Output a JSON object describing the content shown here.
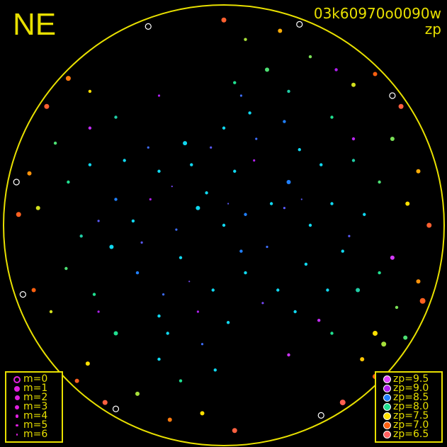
{
  "chart_data": {
    "type": "scatter",
    "title": "03k60970o0090w",
    "subtitle": "zp",
    "direction_label": "NE",
    "color_by": "zp",
    "size_by": "m",
    "field": "all-sky circle",
    "grid": false,
    "legend_size": {
      "placement": "bottom-left",
      "entries": [
        {
          "label": "m=0",
          "m": 0
        },
        {
          "label": "m=1",
          "m": 1
        },
        {
          "label": "m=2",
          "m": 2
        },
        {
          "label": "m=3",
          "m": 3
        },
        {
          "label": "m=4",
          "m": 4
        },
        {
          "label": "m=5",
          "m": 5
        },
        {
          "label": "m=6",
          "m": 6
        }
      ]
    },
    "legend_color": {
      "placement": "bottom-right",
      "entries": [
        {
          "label": "zp=9.5",
          "zp": 9.5,
          "color": "#e040ff"
        },
        {
          "label": "zp=9.0",
          "zp": 9.0,
          "color": "#b020f0"
        },
        {
          "label": "zp=8.5",
          "zp": 8.5,
          "color": "#2080ff"
        },
        {
          "label": "zp=8.0",
          "zp": 8.0,
          "color": "#20e090"
        },
        {
          "label": "zp=7.5",
          "zp": 7.5,
          "color": "#ffe000"
        },
        {
          "label": "zp=7.0",
          "zp": 7.0,
          "color": "#ff6010"
        },
        {
          "label": "zp=6.5",
          "zp": 6.5,
          "color": "#ff6060"
        }
      ]
    },
    "colors": {
      "frame": "#e8e000",
      "background": "#000000"
    },
    "points_format": [
      "x",
      "y",
      "zp",
      "m"
    ],
    "points": [
      [
        0.0,
        0.0,
        8.3,
        4
      ],
      [
        0.1,
        0.05,
        8.5,
        4
      ],
      [
        -0.12,
        0.08,
        8.3,
        3
      ],
      [
        0.2,
        -0.1,
        8.6,
        5
      ],
      [
        -0.2,
        -0.15,
        8.3,
        4
      ],
      [
        0.05,
        0.25,
        8.4,
        4
      ],
      [
        -0.05,
        -0.3,
        8.3,
        4
      ],
      [
        0.3,
        0.2,
        8.5,
        3
      ],
      [
        -0.3,
        0.25,
        8.3,
        4
      ],
      [
        0.25,
        -0.3,
        8.4,
        4
      ],
      [
        -0.28,
        -0.32,
        8.6,
        5
      ],
      [
        0.4,
        0.0,
        8.3,
        4
      ],
      [
        -0.42,
        0.02,
        8.4,
        4
      ],
      [
        0.0,
        0.45,
        8.3,
        4
      ],
      [
        0.02,
        -0.45,
        8.3,
        4
      ],
      [
        0.15,
        0.4,
        8.6,
        5
      ],
      [
        -0.18,
        0.38,
        8.3,
        3
      ],
      [
        0.38,
        -0.18,
        8.3,
        4
      ],
      [
        -0.4,
        -0.22,
        8.5,
        4
      ],
      [
        0.35,
        0.35,
        8.3,
        4
      ],
      [
        -0.35,
        0.36,
        8.6,
        5
      ],
      [
        0.33,
        -0.4,
        8.4,
        4
      ],
      [
        -0.3,
        -0.42,
        8.3,
        4
      ],
      [
        0.5,
        0.1,
        8.3,
        4
      ],
      [
        -0.5,
        0.12,
        8.5,
        4
      ],
      [
        0.12,
        0.52,
        8.3,
        4
      ],
      [
        -0.1,
        -0.55,
        8.6,
        5
      ],
      [
        0.55,
        -0.12,
        8.2,
        4
      ],
      [
        -0.52,
        -0.1,
        8.3,
        3
      ],
      [
        0.08,
        -0.12,
        8.5,
        4
      ],
      [
        -0.08,
        0.15,
        8.3,
        4
      ],
      [
        0.22,
        0.1,
        8.3,
        4
      ],
      [
        -0.22,
        -0.02,
        8.6,
        5
      ],
      [
        0.1,
        -0.22,
        8.3,
        4
      ],
      [
        -0.15,
        0.28,
        8.4,
        4
      ],
      [
        0.45,
        0.28,
        8.3,
        4
      ],
      [
        -0.46,
        0.3,
        8.3,
        4
      ],
      [
        0.28,
        0.48,
        8.5,
        4
      ],
      [
        -0.26,
        -0.5,
        8.3,
        4
      ],
      [
        0.48,
        -0.3,
        8.2,
        4
      ],
      [
        0.6,
        0.3,
        8.1,
        4
      ],
      [
        -0.62,
        0.28,
        8.2,
        4
      ],
      [
        0.3,
        0.62,
        8.1,
        4
      ],
      [
        -0.3,
        -0.62,
        8.2,
        4
      ],
      [
        0.62,
        -0.3,
        8.1,
        3
      ],
      [
        -0.6,
        -0.32,
        8.0,
        4
      ],
      [
        0.65,
        0.05,
        8.2,
        4
      ],
      [
        -0.66,
        -0.05,
        8.1,
        4
      ],
      [
        0.05,
        0.66,
        8.0,
        4
      ],
      [
        -0.04,
        -0.67,
        8.2,
        4
      ],
      [
        0.5,
        0.5,
        8.0,
        4
      ],
      [
        -0.5,
        0.5,
        8.1,
        4
      ],
      [
        0.5,
        -0.5,
        8.0,
        4
      ],
      [
        -0.5,
        -0.5,
        8.0,
        3
      ],
      [
        0.72,
        0.2,
        7.9,
        4
      ],
      [
        -0.72,
        0.2,
        8.0,
        4
      ],
      [
        0.2,
        0.72,
        7.9,
        3
      ],
      [
        -0.2,
        -0.72,
        8.0,
        4
      ],
      [
        0.72,
        -0.22,
        8.0,
        4
      ],
      [
        -0.73,
        -0.2,
        7.9,
        4
      ],
      [
        0.78,
        0.4,
        7.8,
        3
      ],
      [
        -0.78,
        0.38,
        7.9,
        4
      ],
      [
        0.4,
        0.78,
        7.8,
        4
      ],
      [
        -0.4,
        -0.78,
        7.7,
        3
      ],
      [
        0.8,
        -0.38,
        7.8,
        4
      ],
      [
        -0.8,
        -0.4,
        7.6,
        4
      ],
      [
        0.85,
        0.1,
        7.5,
        3
      ],
      [
        -0.86,
        0.08,
        7.6,
        3
      ],
      [
        0.1,
        0.86,
        7.7,
        4
      ],
      [
        -0.1,
        -0.87,
        7.5,
        3
      ],
      [
        0.6,
        0.65,
        7.6,
        3
      ],
      [
        -0.62,
        0.62,
        7.5,
        4
      ],
      [
        0.64,
        -0.62,
        7.4,
        3
      ],
      [
        -0.63,
        -0.64,
        7.5,
        3
      ],
      [
        0.9,
        0.25,
        7.3,
        3
      ],
      [
        -0.9,
        0.24,
        7.2,
        3
      ],
      [
        0.26,
        0.9,
        7.3,
        3
      ],
      [
        -0.25,
        -0.9,
        7.1,
        3
      ],
      [
        0.9,
        -0.26,
        7.2,
        3
      ],
      [
        -0.88,
        -0.3,
        7.0,
        3
      ],
      [
        0.7,
        0.7,
        7.0,
        3
      ],
      [
        -0.72,
        0.68,
        7.1,
        2
      ],
      [
        0.7,
        -0.7,
        7.0,
        2
      ],
      [
        -0.68,
        -0.72,
        6.9,
        3
      ],
      [
        0.95,
        0.0,
        6.8,
        2
      ],
      [
        -0.95,
        0.05,
        6.9,
        2
      ],
      [
        0.0,
        0.95,
        6.8,
        2
      ],
      [
        0.05,
        -0.95,
        6.7,
        2
      ],
      [
        0.82,
        0.55,
        6.7,
        2
      ],
      [
        -0.82,
        0.55,
        6.8,
        2
      ],
      [
        0.55,
        -0.82,
        6.6,
        1
      ],
      [
        -0.55,
        -0.82,
        6.7,
        2
      ],
      [
        0.92,
        -0.35,
        6.9,
        1
      ],
      [
        -0.93,
        -0.32,
        6.6,
        0
      ],
      [
        0.35,
        0.93,
        6.8,
        0
      ],
      [
        -0.35,
        0.92,
        6.7,
        0
      ],
      [
        0.78,
        0.6,
        6.6,
        0
      ],
      [
        -0.5,
        -0.85,
        6.5,
        0
      ],
      [
        0.45,
        -0.88,
        6.6,
        0
      ],
      [
        -0.96,
        0.2,
        6.5,
        0
      ],
      [
        0.14,
        0.3,
        9.0,
        5
      ],
      [
        -0.34,
        0.12,
        9.0,
        5
      ],
      [
        0.44,
        -0.44,
        9.2,
        4
      ],
      [
        -0.12,
        -0.4,
        9.0,
        5
      ],
      [
        0.6,
        0.4,
        9.1,
        4
      ],
      [
        -0.58,
        -0.4,
        9.0,
        5
      ],
      [
        0.3,
        -0.6,
        9.3,
        4
      ],
      [
        -0.3,
        0.6,
        9.0,
        5
      ],
      [
        0.78,
        -0.15,
        9.4,
        3
      ],
      [
        0.52,
        0.72,
        9.0,
        4
      ],
      [
        -0.62,
        0.45,
        9.2,
        4
      ],
      [
        0.28,
        0.08,
        8.7,
        5
      ],
      [
        -0.06,
        0.36,
        8.7,
        5
      ],
      [
        0.18,
        -0.36,
        8.8,
        5
      ],
      [
        -0.38,
        -0.08,
        8.7,
        5
      ],
      [
        0.02,
        0.1,
        8.7,
        6
      ],
      [
        -0.24,
        0.18,
        8.8,
        6
      ],
      [
        0.36,
        0.12,
        8.7,
        6
      ],
      [
        -0.16,
        -0.26,
        8.8,
        6
      ],
      [
        0.08,
        0.6,
        8.6,
        5
      ],
      [
        0.58,
        -0.05,
        8.7,
        5
      ],
      [
        -0.58,
        0.02,
        8.7,
        5
      ],
      [
        0.7,
        -0.5,
        7.5,
        2
      ],
      [
        0.74,
        -0.55,
        7.7,
        2
      ],
      [
        0.84,
        -0.52,
        7.9,
        3
      ]
    ]
  }
}
